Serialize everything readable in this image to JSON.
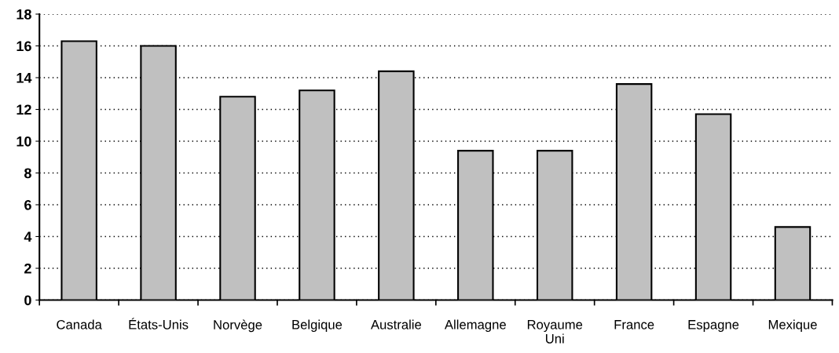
{
  "chart_data": {
    "type": "bar",
    "categories": [
      "Canada",
      "États-Unis",
      "Norvège",
      "Belgique",
      "Australie",
      "Allemagne",
      "Royaume\nUni",
      "France",
      "Espagne",
      "Mexique"
    ],
    "values": [
      16.3,
      16.0,
      12.8,
      13.2,
      14.4,
      9.4,
      9.4,
      13.6,
      11.7,
      4.6
    ],
    "color": "#c0c0c0",
    "ylim": [
      0,
      18
    ],
    "yticks": [
      0,
      2,
      4,
      6,
      8,
      10,
      12,
      14,
      16,
      18
    ],
    "grid": "y"
  }
}
